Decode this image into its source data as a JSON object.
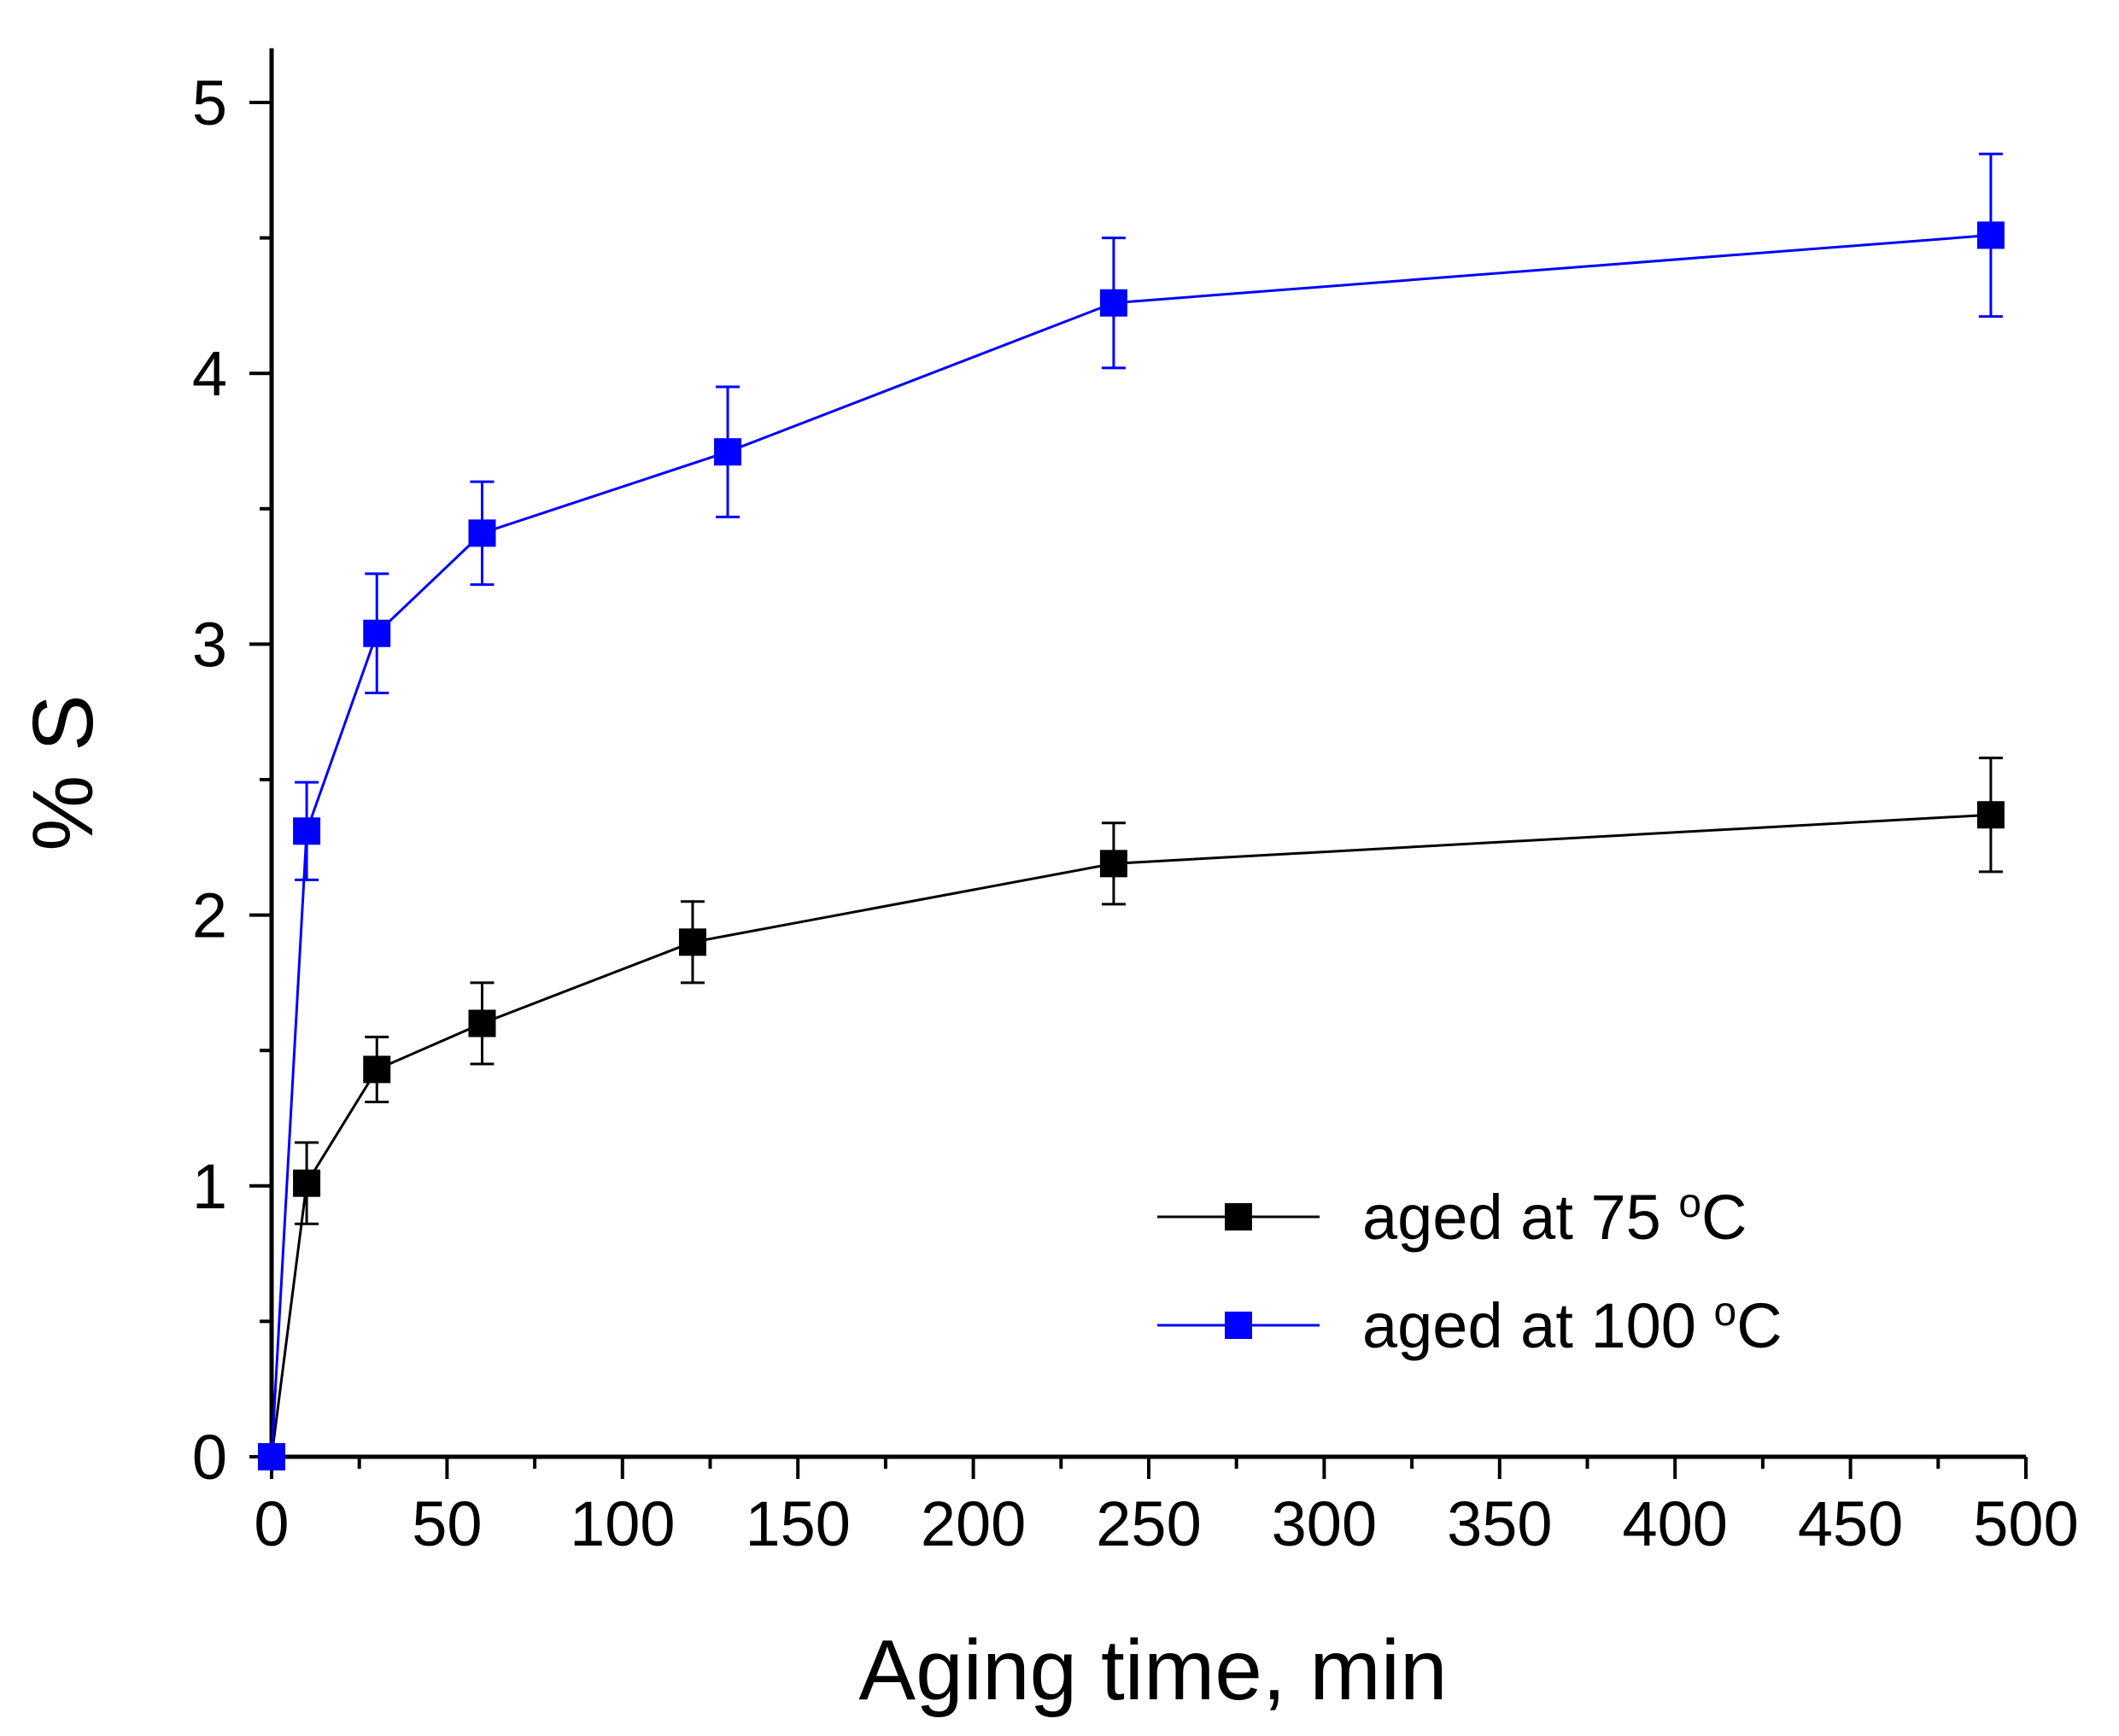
{
  "chart_data": {
    "type": "line",
    "title": "",
    "xlabel": "Aging time, min",
    "ylabel": "% S",
    "xlim": [
      0,
      500
    ],
    "ylim": [
      0,
      5.2
    ],
    "xticks": [
      0,
      50,
      100,
      150,
      200,
      250,
      300,
      350,
      400,
      450,
      500
    ],
    "yticks": [
      0,
      1,
      2,
      3,
      4,
      5
    ],
    "grid": false,
    "legend_position": "bottom-right",
    "series": [
      {
        "name": "aged at 75",
        "unit": "°C",
        "degree_symbol": "o",
        "unit_letter": "C",
        "color": "#000000",
        "x": [
          0,
          10,
          30,
          60,
          120,
          240,
          490
        ],
        "y": [
          0,
          1.01,
          1.43,
          1.6,
          1.9,
          2.19,
          2.37
        ],
        "err": [
          0,
          0.15,
          0.12,
          0.15,
          0.15,
          0.15,
          0.21
        ]
      },
      {
        "name": "aged at 100",
        "unit": "°C",
        "degree_symbol": "o",
        "unit_letter": "C",
        "color": "#0000ff",
        "x": [
          0,
          10,
          30,
          60,
          130,
          240,
          490
        ],
        "y": [
          0,
          2.31,
          3.04,
          3.41,
          3.71,
          4.26,
          4.51
        ],
        "err": [
          0,
          0.18,
          0.22,
          0.19,
          0.24,
          0.24,
          0.3
        ]
      }
    ]
  }
}
